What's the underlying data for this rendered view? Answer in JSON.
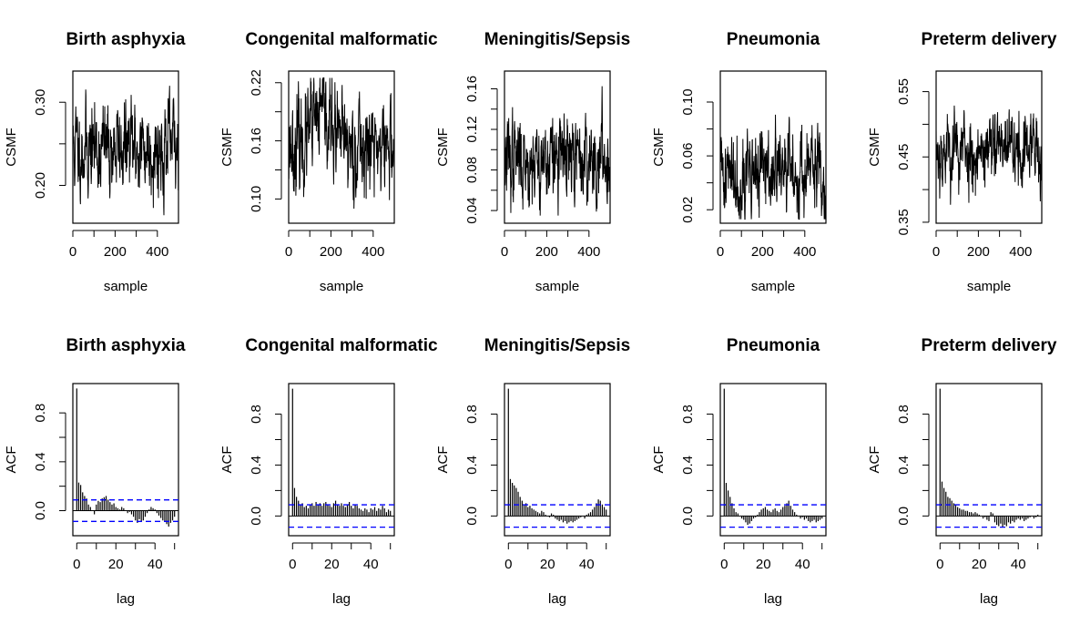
{
  "chart_data": [
    {
      "type": "line",
      "row": "trace",
      "title": "Birth asphyxia",
      "xlabel": "sample",
      "ylabel": "CSMF",
      "xlim": [
        0,
        500
      ],
      "xticks": [
        0,
        200,
        400
      ],
      "ylim": [
        0.1545,
        0.3375
      ],
      "yticks": [
        0.2,
        0.3
      ],
      "ytick_labels": [
        "0.20",
        "0.30"
      ],
      "n": 500,
      "mean": 0.245,
      "sd": 0.028,
      "min": 0.16,
      "max": 0.335,
      "phi": 0.6,
      "seed": 11
    },
    {
      "type": "line",
      "row": "trace",
      "title": "Congenital malformatic",
      "xlabel": "sample",
      "ylabel": "CSMF",
      "xlim": [
        0,
        500
      ],
      "xticks": [
        0,
        200,
        400
      ],
      "ylim": [
        0.075,
        0.232
      ],
      "yticks": [
        0.1,
        0.16,
        0.22
      ],
      "ytick_labels": [
        "0.10",
        "0.16",
        "0.22"
      ],
      "n": 500,
      "mean": 0.155,
      "sd": 0.025,
      "min": 0.09,
      "max": 0.225,
      "phi": 0.6,
      "seed": 23,
      "bump": {
        "center": 160,
        "width": 60,
        "height": 0.03
      }
    },
    {
      "type": "line",
      "row": "trace",
      "title": "Meningitis/Sepsis",
      "xlabel": "sample",
      "ylabel": "CSMF",
      "xlim": [
        0,
        500
      ],
      "xticks": [
        0,
        200,
        400
      ],
      "ylim": [
        0.0275,
        0.1775
      ],
      "yticks": [
        0.04,
        0.08,
        0.12,
        0.16
      ],
      "ytick_labels": [
        "0.04",
        "0.08",
        "0.12",
        "0.16"
      ],
      "n": 500,
      "mean": 0.09,
      "sd": 0.022,
      "min": 0.035,
      "max": 0.17,
      "phi": 0.6,
      "seed": 37
    },
    {
      "type": "line",
      "row": "trace",
      "title": "Pneumonia",
      "xlabel": "sample",
      "ylabel": "CSMF",
      "xlim": [
        0,
        500
      ],
      "xticks": [
        0,
        200,
        400
      ],
      "ylim": [
        0.01,
        0.123
      ],
      "yticks": [
        0.02,
        0.06,
        0.1
      ],
      "ytick_labels": [
        "0.02",
        "0.06",
        "0.10"
      ],
      "n": 500,
      "mean": 0.048,
      "sd": 0.016,
      "min": 0.013,
      "max": 0.118,
      "phi": 0.6,
      "seed": 41
    },
    {
      "type": "line",
      "row": "trace",
      "title": "Preterm delivery",
      "xlabel": "sample",
      "ylabel": "CSMF",
      "xlim": [
        0,
        500
      ],
      "xticks": [
        0,
        200,
        400
      ],
      "ylim": [
        0.3485,
        0.5815
      ],
      "yticks": [
        0.35,
        0.45,
        0.55
      ],
      "ytick_labels": [
        "0.35",
        "0.45",
        "0.55"
      ],
      "n": 500,
      "mean": 0.46,
      "sd": 0.03,
      "min": 0.36,
      "max": 0.575,
      "phi": 0.6,
      "seed": 53
    },
    {
      "type": "bar",
      "row": "acf",
      "title": "Birth asphyxia",
      "xlabel": "lag",
      "ylabel": "ACF",
      "xlim": [
        -2,
        52
      ],
      "xticks": [
        0,
        20,
        40
      ],
      "ylim": [
        -0.205,
        1.04
      ],
      "yticks": [
        0.0,
        0.4,
        0.8
      ],
      "ytick_labels": [
        "0.0",
        "0.4",
        "0.8"
      ],
      "ci": 0.088,
      "lags": [
        0,
        1,
        2,
        3,
        4,
        5,
        6,
        7,
        8,
        9,
        10,
        11,
        12,
        13,
        14,
        15,
        16,
        17,
        18,
        19,
        20,
        21,
        22,
        23,
        24,
        25,
        26,
        27,
        28,
        29,
        30,
        31,
        32,
        33,
        34,
        35,
        36,
        37,
        38,
        39,
        40,
        41,
        42,
        43,
        44,
        45,
        46,
        47,
        48,
        49,
        50
      ],
      "values": [
        1.0,
        0.23,
        0.21,
        0.15,
        0.12,
        0.1,
        0.05,
        0.03,
        0.0,
        -0.03,
        0.05,
        0.08,
        0.07,
        0.1,
        0.11,
        0.12,
        0.09,
        0.07,
        0.05,
        0.06,
        0.03,
        0.02,
        0.01,
        0.03,
        0.02,
        0.0,
        -0.02,
        -0.01,
        -0.03,
        -0.05,
        -0.08,
        -0.1,
        -0.07,
        -0.09,
        -0.08,
        -0.05,
        -0.02,
        0.01,
        0.03,
        0.02,
        0.01,
        -0.02,
        -0.04,
        -0.06,
        -0.08,
        -0.09,
        -0.11,
        -0.13,
        -0.1,
        -0.08,
        -0.05
      ]
    },
    {
      "type": "bar",
      "row": "acf",
      "title": "Congenital malformatic",
      "xlabel": "lag",
      "ylabel": "ACF",
      "xlim": [
        -2,
        52
      ],
      "xticks": [
        0,
        20,
        40
      ],
      "ylim": [
        -0.155,
        1.04
      ],
      "yticks": [
        0.0,
        0.4,
        0.8
      ],
      "ytick_labels": [
        "0.0",
        "0.4",
        "0.8"
      ],
      "ci": 0.088,
      "lags": [
        0,
        1,
        2,
        3,
        4,
        5,
        6,
        7,
        8,
        9,
        10,
        11,
        12,
        13,
        14,
        15,
        16,
        17,
        18,
        19,
        20,
        21,
        22,
        23,
        24,
        25,
        26,
        27,
        28,
        29,
        30,
        31,
        32,
        33,
        34,
        35,
        36,
        37,
        38,
        39,
        40,
        41,
        42,
        43,
        44,
        45,
        46,
        47,
        48,
        49,
        50
      ],
      "values": [
        1.0,
        0.22,
        0.15,
        0.12,
        0.09,
        0.1,
        0.07,
        0.08,
        0.06,
        0.09,
        0.1,
        0.08,
        0.11,
        0.09,
        0.1,
        0.08,
        0.1,
        0.11,
        0.09,
        0.08,
        0.07,
        0.1,
        0.12,
        0.09,
        0.08,
        0.1,
        0.08,
        0.07,
        0.09,
        0.11,
        0.08,
        0.06,
        0.09,
        0.08,
        0.06,
        0.05,
        0.04,
        0.06,
        0.05,
        0.03,
        0.06,
        0.05,
        0.07,
        0.04,
        0.06,
        0.05,
        0.08,
        0.06,
        0.03,
        0.05,
        0.04
      ]
    },
    {
      "type": "bar",
      "row": "acf",
      "title": "Meningitis/Sepsis",
      "xlabel": "lag",
      "ylabel": "ACF",
      "xlim": [
        -2,
        52
      ],
      "xticks": [
        0,
        20,
        40
      ],
      "ylim": [
        -0.155,
        1.04
      ],
      "yticks": [
        0.0,
        0.4,
        0.8
      ],
      "ytick_labels": [
        "0.0",
        "0.4",
        "0.8"
      ],
      "ci": 0.088,
      "lags": [
        0,
        1,
        2,
        3,
        4,
        5,
        6,
        7,
        8,
        9,
        10,
        11,
        12,
        13,
        14,
        15,
        16,
        17,
        18,
        19,
        20,
        21,
        22,
        23,
        24,
        25,
        26,
        27,
        28,
        29,
        30,
        31,
        32,
        33,
        34,
        35,
        36,
        37,
        38,
        39,
        40,
        41,
        42,
        43,
        44,
        45,
        46,
        47,
        48,
        49,
        50
      ],
      "values": [
        1.0,
        0.29,
        0.26,
        0.24,
        0.22,
        0.19,
        0.15,
        0.12,
        0.09,
        0.1,
        0.07,
        0.08,
        0.06,
        0.05,
        0.04,
        0.03,
        0.02,
        0.04,
        0.03,
        0.01,
        0.0,
        -0.01,
        0.02,
        0.01,
        -0.02,
        -0.03,
        -0.04,
        -0.03,
        -0.05,
        -0.04,
        -0.06,
        -0.05,
        -0.04,
        -0.05,
        -0.04,
        -0.03,
        -0.02,
        -0.01,
        0.0,
        -0.02,
        0.01,
        0.02,
        0.03,
        0.05,
        0.07,
        0.1,
        0.13,
        0.12,
        0.09,
        0.07,
        0.05
      ]
    },
    {
      "type": "bar",
      "row": "acf",
      "title": "Pneumonia",
      "xlabel": "lag",
      "ylabel": "ACF",
      "xlim": [
        -2,
        52
      ],
      "xticks": [
        0,
        20,
        40
      ],
      "ylim": [
        -0.155,
        1.04
      ],
      "yticks": [
        0.0,
        0.4,
        0.8
      ],
      "ytick_labels": [
        "0.0",
        "0.4",
        "0.8"
      ],
      "ci": 0.088,
      "lags": [
        0,
        1,
        2,
        3,
        4,
        5,
        6,
        7,
        8,
        9,
        10,
        11,
        12,
        13,
        14,
        15,
        16,
        17,
        18,
        19,
        20,
        21,
        22,
        23,
        24,
        25,
        26,
        27,
        28,
        29,
        30,
        31,
        32,
        33,
        34,
        35,
        36,
        37,
        38,
        39,
        40,
        41,
        42,
        43,
        44,
        45,
        46,
        47,
        48,
        49,
        50
      ],
      "values": [
        1.0,
        0.26,
        0.2,
        0.15,
        0.1,
        0.06,
        0.03,
        0.02,
        0.0,
        -0.02,
        -0.03,
        -0.05,
        -0.07,
        -0.06,
        -0.04,
        -0.02,
        -0.01,
        0.01,
        0.03,
        0.05,
        0.06,
        0.07,
        0.05,
        0.04,
        0.03,
        0.05,
        0.06,
        0.04,
        0.03,
        0.05,
        0.07,
        0.08,
        0.1,
        0.12,
        0.08,
        0.05,
        0.03,
        0.01,
        0.0,
        -0.02,
        -0.01,
        -0.03,
        -0.02,
        -0.04,
        -0.05,
        -0.04,
        -0.03,
        -0.05,
        -0.04,
        -0.03,
        -0.02
      ]
    },
    {
      "type": "bar",
      "row": "acf",
      "title": "Preterm delivery",
      "xlabel": "lag",
      "ylabel": "ACF",
      "xlim": [
        -2,
        52
      ],
      "xticks": [
        0,
        20,
        40
      ],
      "ylim": [
        -0.155,
        1.04
      ],
      "yticks": [
        0.0,
        0.4,
        0.8
      ],
      "ytick_labels": [
        "0.0",
        "0.4",
        "0.8"
      ],
      "ci": 0.088,
      "lags": [
        0,
        1,
        2,
        3,
        4,
        5,
        6,
        7,
        8,
        9,
        10,
        11,
        12,
        13,
        14,
        15,
        16,
        17,
        18,
        19,
        20,
        21,
        22,
        23,
        24,
        25,
        26,
        27,
        28,
        29,
        30,
        31,
        32,
        33,
        34,
        35,
        36,
        37,
        38,
        39,
        40,
        41,
        42,
        43,
        44,
        45,
        46,
        47,
        48,
        49,
        50
      ],
      "values": [
        1.0,
        0.27,
        0.22,
        0.19,
        0.15,
        0.14,
        0.12,
        0.1,
        0.09,
        0.07,
        0.06,
        0.05,
        0.05,
        0.04,
        0.04,
        0.03,
        0.03,
        0.02,
        0.03,
        0.02,
        0.01,
        0.0,
        -0.02,
        -0.01,
        -0.03,
        -0.04,
        0.03,
        0.02,
        -0.05,
        -0.07,
        -0.08,
        -0.06,
        -0.09,
        -0.07,
        -0.08,
        -0.05,
        -0.06,
        -0.04,
        -0.05,
        -0.03,
        -0.02,
        -0.03,
        -0.02,
        -0.04,
        -0.03,
        -0.02,
        -0.01,
        0.0,
        -0.02,
        -0.01,
        0.01
      ]
    }
  ],
  "colors": {
    "line": "#000000",
    "ci": "#0000ff",
    "axis": "#000000",
    "background": "#ffffff"
  }
}
